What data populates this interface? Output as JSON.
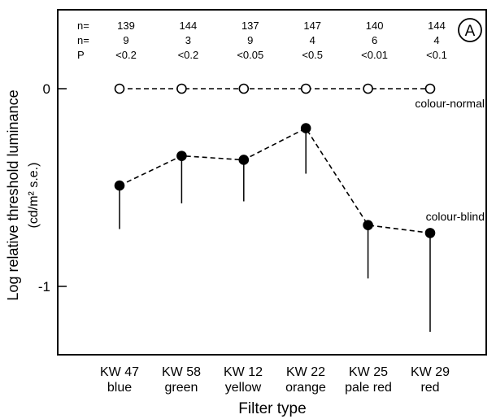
{
  "chart_data": {
    "type": "line",
    "panel_label": "A",
    "xlabel": "Filter type",
    "ylabel_line1": "Log relative threshold luminance",
    "ylabel_line2": "(cd/m² s.e.)",
    "y_ticks": [
      {
        "value": 0,
        "label": "0"
      },
      {
        "value": -1,
        "label": "-1"
      }
    ],
    "ylim": [
      -1.35,
      0.4
    ],
    "categories": [
      {
        "line1": "KW 47",
        "line2": "blue"
      },
      {
        "line1": "KW 58",
        "line2": "green"
      },
      {
        "line1": "KW 12",
        "line2": "yellow"
      },
      {
        "line1": "KW 22",
        "line2": "orange"
      },
      {
        "line1": "KW 25",
        "line2": "pale red"
      },
      {
        "line1": "KW 29",
        "line2": "red"
      }
    ],
    "stats_rows": [
      {
        "label": "n=",
        "values": [
          "139",
          "144",
          "137",
          "147",
          "140",
          "144"
        ]
      },
      {
        "label": "n=",
        "values": [
          "9",
          "3",
          "9",
          "4",
          "6",
          "4"
        ]
      },
      {
        "label": "P",
        "values": [
          "<0.2",
          "<0.2",
          "<0.05",
          "<0.5",
          "<0.01",
          "<0.1"
        ]
      }
    ],
    "series": [
      {
        "name": "colour-normal",
        "marker": "open-circle",
        "values": [
          0,
          0,
          0,
          0,
          0,
          0
        ],
        "error_down": [
          0,
          0,
          0,
          0,
          0,
          0
        ]
      },
      {
        "name": "colour-blind",
        "marker": "filled-circle",
        "values": [
          -0.49,
          -0.34,
          -0.36,
          -0.2,
          -0.69,
          -0.73
        ],
        "error_down": [
          0.22,
          0.24,
          0.21,
          0.23,
          0.27,
          0.5
        ]
      }
    ],
    "grid": false,
    "legend": "inline labels"
  }
}
